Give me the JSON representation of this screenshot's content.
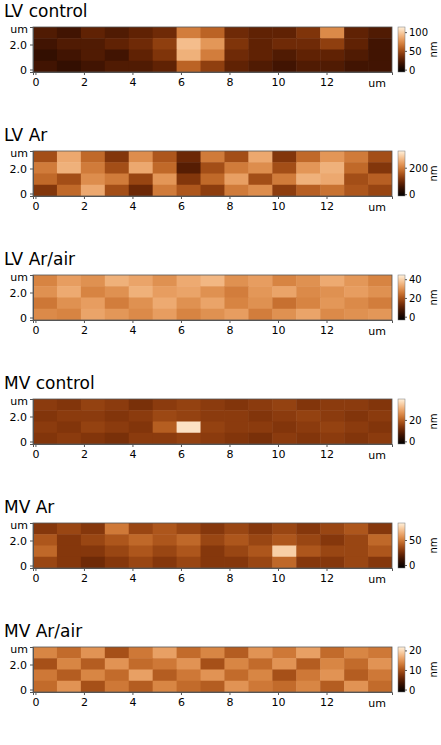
{
  "chart_data": [
    {
      "type": "heatmap",
      "title": "LV control",
      "x_label": "um",
      "y_label": "um",
      "xlim": [
        -0.1,
        14.7
      ],
      "ylim": [
        -0.2,
        3.4
      ],
      "xticks": [
        0,
        2,
        4,
        6,
        8,
        10,
        12
      ],
      "yticks": [
        0,
        {
          "value": 2,
          "label": "2.0"
        }
      ],
      "cells": [
        [
          25,
          20,
          30,
          25,
          30,
          35,
          70,
          60,
          35,
          30,
          30,
          40,
          75,
          30,
          25
        ],
        [
          20,
          25,
          25,
          30,
          35,
          45,
          95,
          80,
          40,
          30,
          35,
          35,
          45,
          30,
          20
        ],
        [
          15,
          20,
          25,
          20,
          30,
          40,
          90,
          70,
          35,
          30,
          25,
          30,
          30,
          25,
          20
        ],
        [
          20,
          15,
          20,
          25,
          25,
          30,
          60,
          45,
          30,
          25,
          20,
          25,
          25,
          20,
          20
        ]
      ],
      "colorbar": {
        "label": "nm",
        "range": [
          -5,
          115
        ],
        "ticks": [
          0,
          50,
          100
        ]
      }
    },
    {
      "type": "heatmap",
      "title": "LV Ar",
      "x_label": "um",
      "y_label": "um",
      "xlim": [
        -0.1,
        14.7
      ],
      "ylim": [
        -0.2,
        3.4
      ],
      "xticks": [
        0,
        2,
        4,
        6,
        8,
        10,
        12
      ],
      "yticks": [
        0,
        {
          "value": 2,
          "label": "2.0"
        }
      ],
      "cells": [
        [
          150,
          250,
          180,
          120,
          220,
          160,
          100,
          200,
          150,
          250,
          120,
          180,
          230,
          200,
          150
        ],
        [
          200,
          260,
          200,
          150,
          250,
          180,
          80,
          150,
          200,
          220,
          150,
          230,
          260,
          180,
          120
        ],
        [
          180,
          150,
          220,
          200,
          140,
          230,
          120,
          180,
          240,
          150,
          200,
          260,
          250,
          150,
          170
        ],
        [
          120,
          180,
          250,
          150,
          100,
          200,
          160,
          130,
          200,
          220,
          130,
          170,
          190,
          160,
          140
        ]
      ],
      "colorbar": {
        "label": "nm",
        "range": [
          -10,
          330
        ],
        "ticks": [
          0,
          200
        ]
      }
    },
    {
      "type": "heatmap",
      "title": "LV Ar/air",
      "x_label": "um",
      "y_label": "um",
      "xlim": [
        -0.1,
        14.7
      ],
      "ylim": [
        -0.2,
        3.4
      ],
      "xticks": [
        0,
        2,
        4,
        6,
        8,
        10,
        12
      ],
      "yticks": [
        0,
        {
          "value": 2,
          "label": "2.0"
        }
      ],
      "cells": [
        [
          28,
          32,
          30,
          35,
          33,
          30,
          34,
          36,
          30,
          32,
          28,
          30,
          34,
          31,
          28
        ],
        [
          30,
          34,
          28,
          30,
          35,
          32,
          33,
          30,
          27,
          31,
          33,
          29,
          30,
          32,
          30
        ],
        [
          26,
          30,
          32,
          27,
          30,
          34,
          30,
          33,
          28,
          30,
          25,
          28,
          31,
          29,
          27
        ],
        [
          29,
          28,
          33,
          31,
          29,
          32,
          28,
          30,
          32,
          27,
          30,
          33,
          29,
          30,
          31
        ]
      ],
      "colorbar": {
        "label": "nm",
        "range": [
          -3,
          45
        ],
        "ticks": [
          0,
          20,
          40
        ]
      }
    },
    {
      "type": "heatmap",
      "title": "MV control",
      "x_label": "um",
      "y_label": "um",
      "xlim": [
        -0.1,
        14.7
      ],
      "ylim": [
        -0.2,
        3.4
      ],
      "xticks": [
        0,
        2,
        4,
        6,
        8,
        10,
        12
      ],
      "yticks": [
        0,
        {
          "value": 2,
          "label": "2.0"
        }
      ],
      "cells": [
        [
          15,
          14,
          16,
          15,
          13,
          15,
          16,
          15,
          14,
          15,
          16,
          14,
          15,
          15,
          14
        ],
        [
          14,
          15,
          15,
          14,
          15,
          17,
          16,
          15,
          15,
          14,
          15,
          16,
          15,
          14,
          15
        ],
        [
          15,
          14,
          16,
          15,
          14,
          20,
          38,
          16,
          15,
          15,
          14,
          15,
          16,
          15,
          14
        ],
        [
          14,
          15,
          14,
          13,
          15,
          15,
          16,
          15,
          14,
          13,
          15,
          14,
          15,
          14,
          15
        ]
      ],
      "colorbar": {
        "label": "nm",
        "range": [
          -2,
          40
        ],
        "ticks": [
          0,
          20
        ]
      }
    },
    {
      "type": "heatmap",
      "title": "MV Ar",
      "x_label": "um",
      "y_label": "um",
      "xlim": [
        -0.1,
        14.7
      ],
      "ylim": [
        -0.2,
        3.4
      ],
      "xticks": [
        0,
        2,
        4,
        6,
        8,
        10,
        12
      ],
      "yticks": [
        0,
        {
          "value": 2,
          "label": "2.0"
        }
      ],
      "cells": [
        [
          30,
          35,
          30,
          50,
          35,
          40,
          35,
          30,
          35,
          30,
          35,
          30,
          35,
          40,
          30
        ],
        [
          40,
          30,
          35,
          40,
          45,
          40,
          45,
          35,
          40,
          35,
          40,
          35,
          30,
          35,
          45
        ],
        [
          45,
          30,
          30,
          35,
          40,
          35,
          40,
          30,
          35,
          40,
          75,
          40,
          35,
          35,
          40
        ],
        [
          35,
          30,
          25,
          30,
          35,
          30,
          35,
          30,
          30,
          35,
          45,
          30,
          30,
          35,
          30
        ]
      ],
      "colorbar": {
        "label": "nm",
        "range": [
          -5,
          85
        ],
        "ticks": [
          0,
          50
        ]
      }
    },
    {
      "type": "heatmap",
      "title": "MV Ar/air",
      "x_label": "um",
      "y_label": "um",
      "xlim": [
        -0.1,
        14.7
      ],
      "ylim": [
        -0.2,
        3.4
      ],
      "xticks": [
        0,
        2,
        4,
        6,
        8,
        10,
        12
      ],
      "yticks": [
        0,
        {
          "value": 2,
          "label": "2.0"
        }
      ],
      "cells": [
        [
          14,
          12,
          15,
          10,
          13,
          16,
          12,
          14,
          11,
          15,
          13,
          16,
          12,
          14,
          13
        ],
        [
          10,
          14,
          11,
          15,
          12,
          13,
          15,
          10,
          14,
          12,
          15,
          11,
          14,
          12,
          15
        ],
        [
          13,
          11,
          14,
          12,
          16,
          11,
          13,
          15,
          12,
          14,
          10,
          13,
          15,
          11,
          13
        ],
        [
          12,
          15,
          10,
          13,
          11,
          14,
          12,
          11,
          15,
          13,
          12,
          14,
          11,
          15,
          12
        ]
      ],
      "colorbar": {
        "label": "nm",
        "range": [
          -1,
          22
        ],
        "ticks": [
          0,
          10,
          20
        ]
      }
    }
  ]
}
